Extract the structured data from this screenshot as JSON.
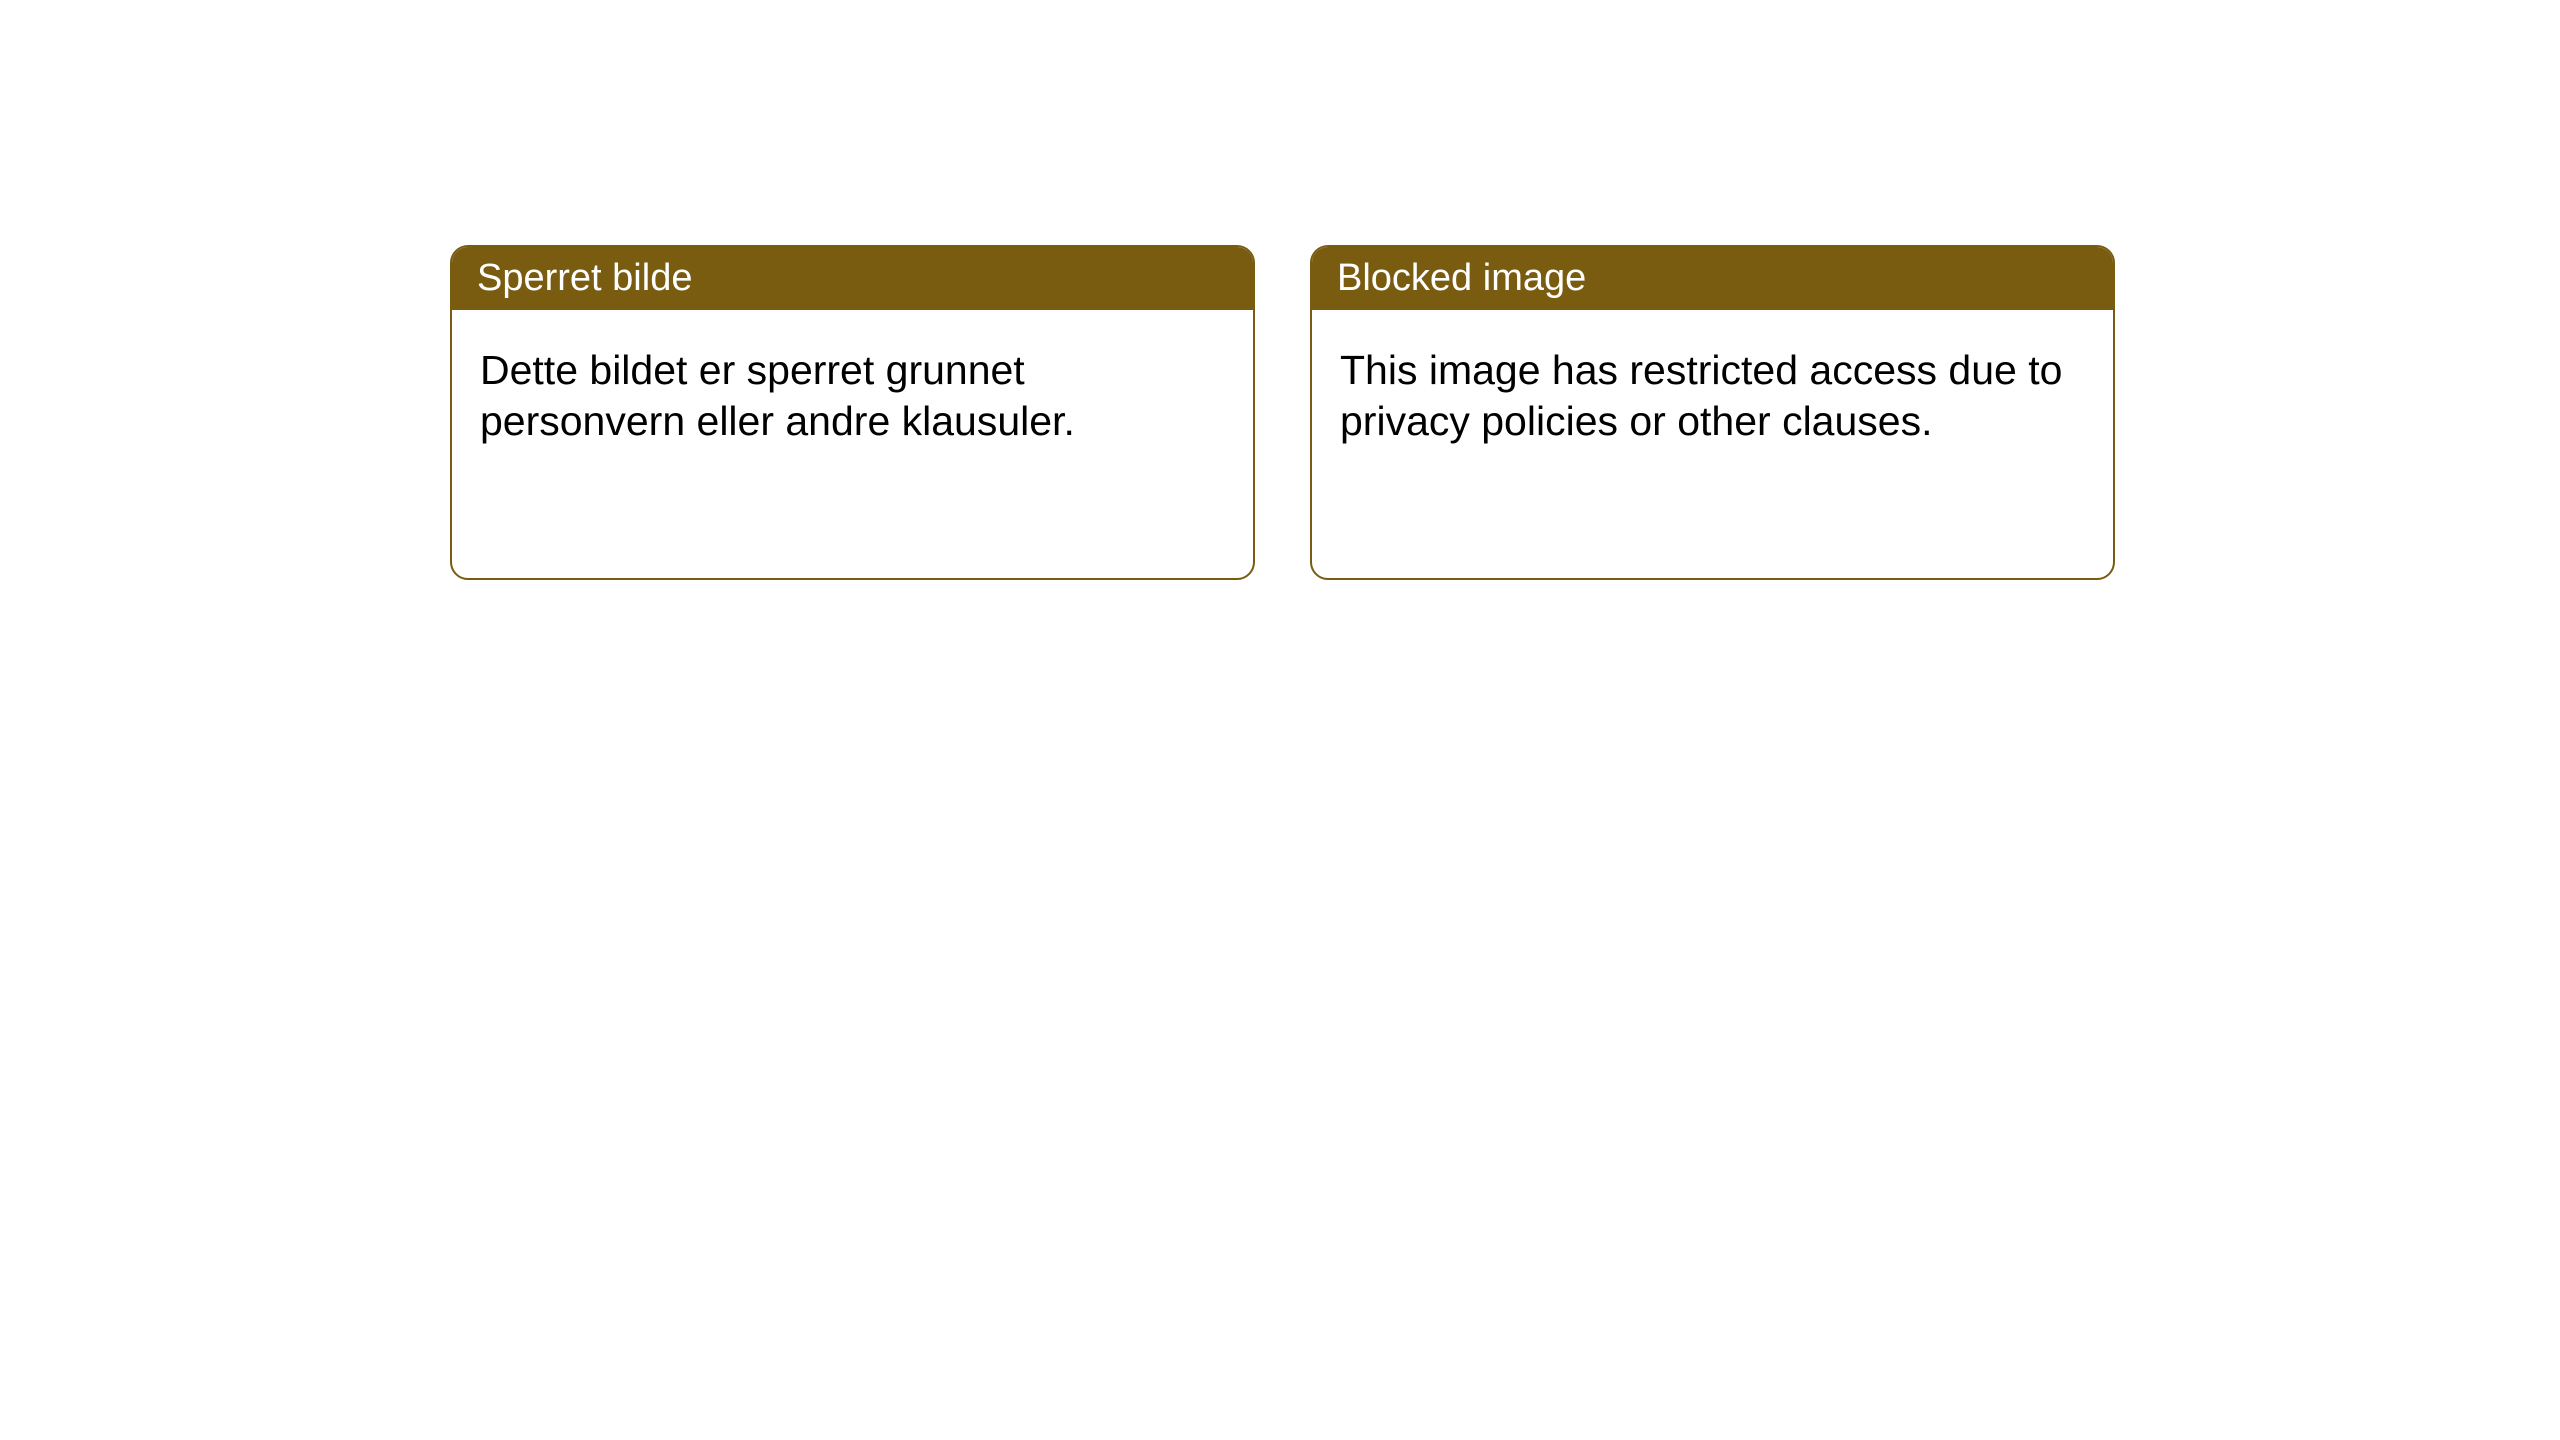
{
  "cards": {
    "norwegian": {
      "title": "Sperret bilde",
      "body": "Dette bildet er sperret grunnet personvern eller andre klausuler."
    },
    "english": {
      "title": "Blocked image",
      "body": "This image has restricted access due to privacy policies or other clauses."
    }
  },
  "styles": {
    "header_background_color": "#7a5c11",
    "header_text_color": "#ffffff",
    "border_color": "#7a5c11",
    "card_background_color": "#ffffff",
    "body_text_color": "#000000",
    "border_radius": 18,
    "header_fontsize": 38,
    "body_fontsize": 41
  }
}
